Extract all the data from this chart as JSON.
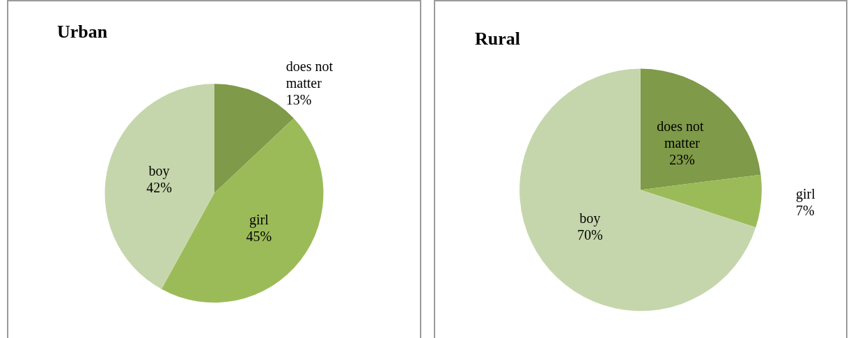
{
  "chart_data": [
    {
      "type": "pie",
      "title": "Urban",
      "categories": [
        "does not matter",
        "girl",
        "boy"
      ],
      "values": [
        13,
        45,
        42
      ],
      "value_labels": [
        "13%",
        "45%",
        "42%"
      ],
      "colors": [
        "#7f9a48",
        "#9bbb59",
        "#c6d6ac"
      ],
      "legend": false
    },
    {
      "type": "pie",
      "title": "Rural",
      "categories": [
        "does not matter",
        "girl",
        "boy"
      ],
      "values": [
        23,
        7,
        70
      ],
      "value_labels": [
        "23%",
        "7%",
        "70%"
      ],
      "colors": [
        "#7f9a48",
        "#9bbb59",
        "#c6d6ac"
      ],
      "legend": false
    }
  ]
}
